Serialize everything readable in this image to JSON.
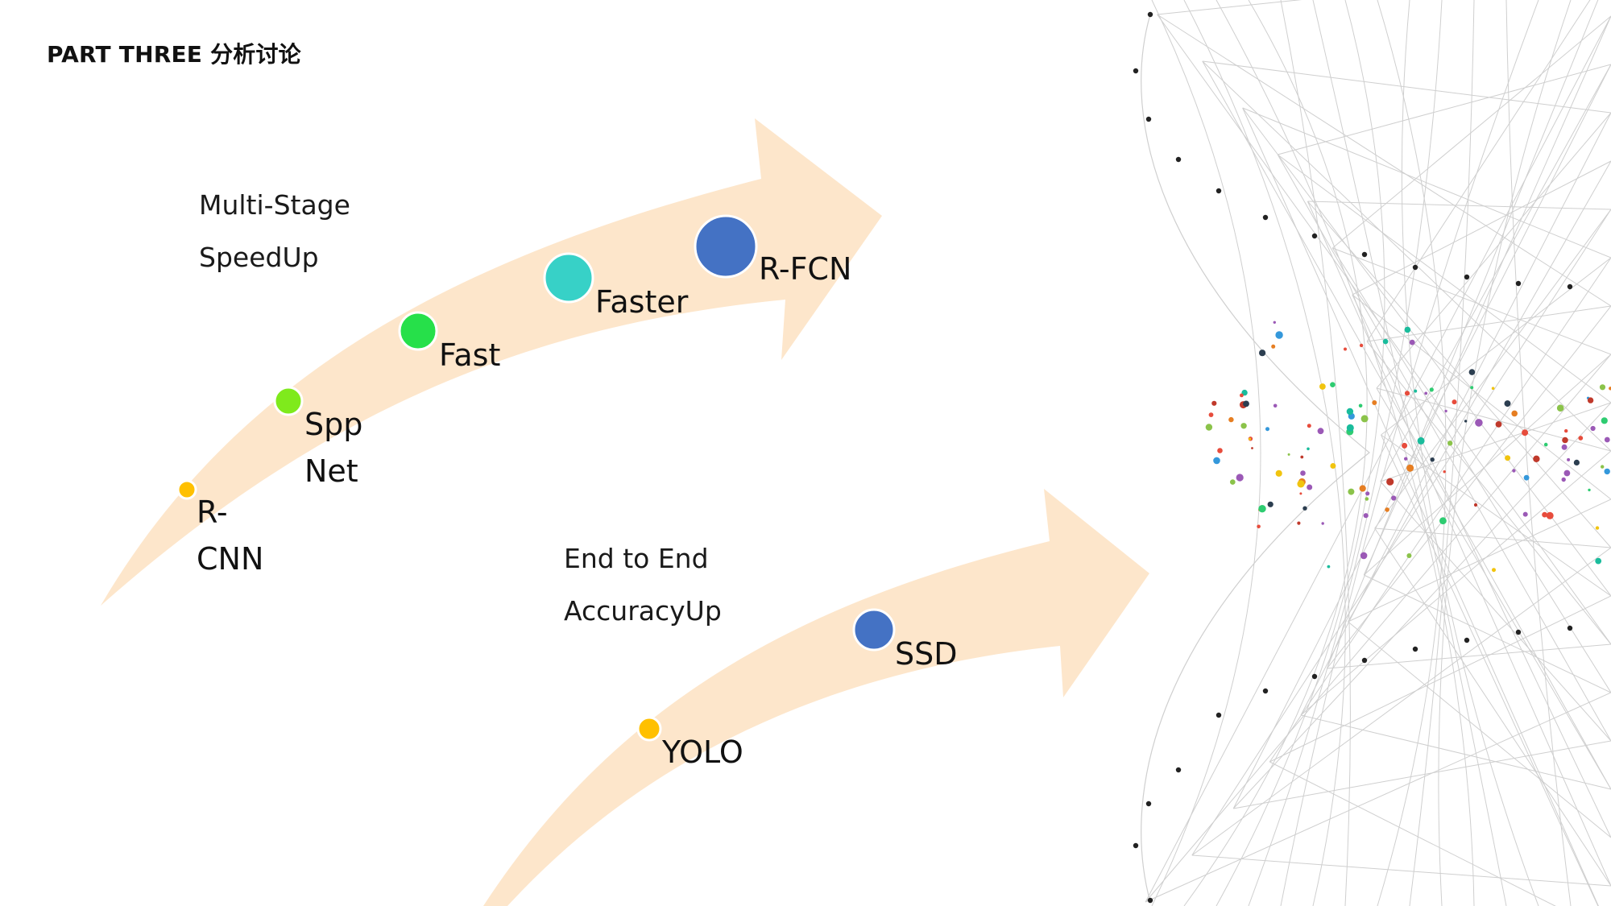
{
  "heading": "PART THREE 分析讨论",
  "upper_group": {
    "line1": "Multi-Stage",
    "line2": "SpeedUp"
  },
  "lower_group": {
    "line1": "End to End",
    "line2": "AccuracyUp"
  },
  "models": {
    "rcnn": "R-\nCNN",
    "sppnet": "Spp\nNet",
    "fast": "Fast",
    "faster": "Faster",
    "rfcn": "R-FCN",
    "yolo": "YOLO",
    "ssd": "SSD"
  },
  "colors": {
    "arrow": "#fde6cb",
    "rcnn": "#ffc000",
    "sppnet": "#7fea1c",
    "fast": "#26e04a",
    "faster": "#37d1c7",
    "rfcn": "#4472c4",
    "yolo": "#ffc000",
    "ssd": "#4472c4",
    "mesh": "#cfcfcf"
  }
}
